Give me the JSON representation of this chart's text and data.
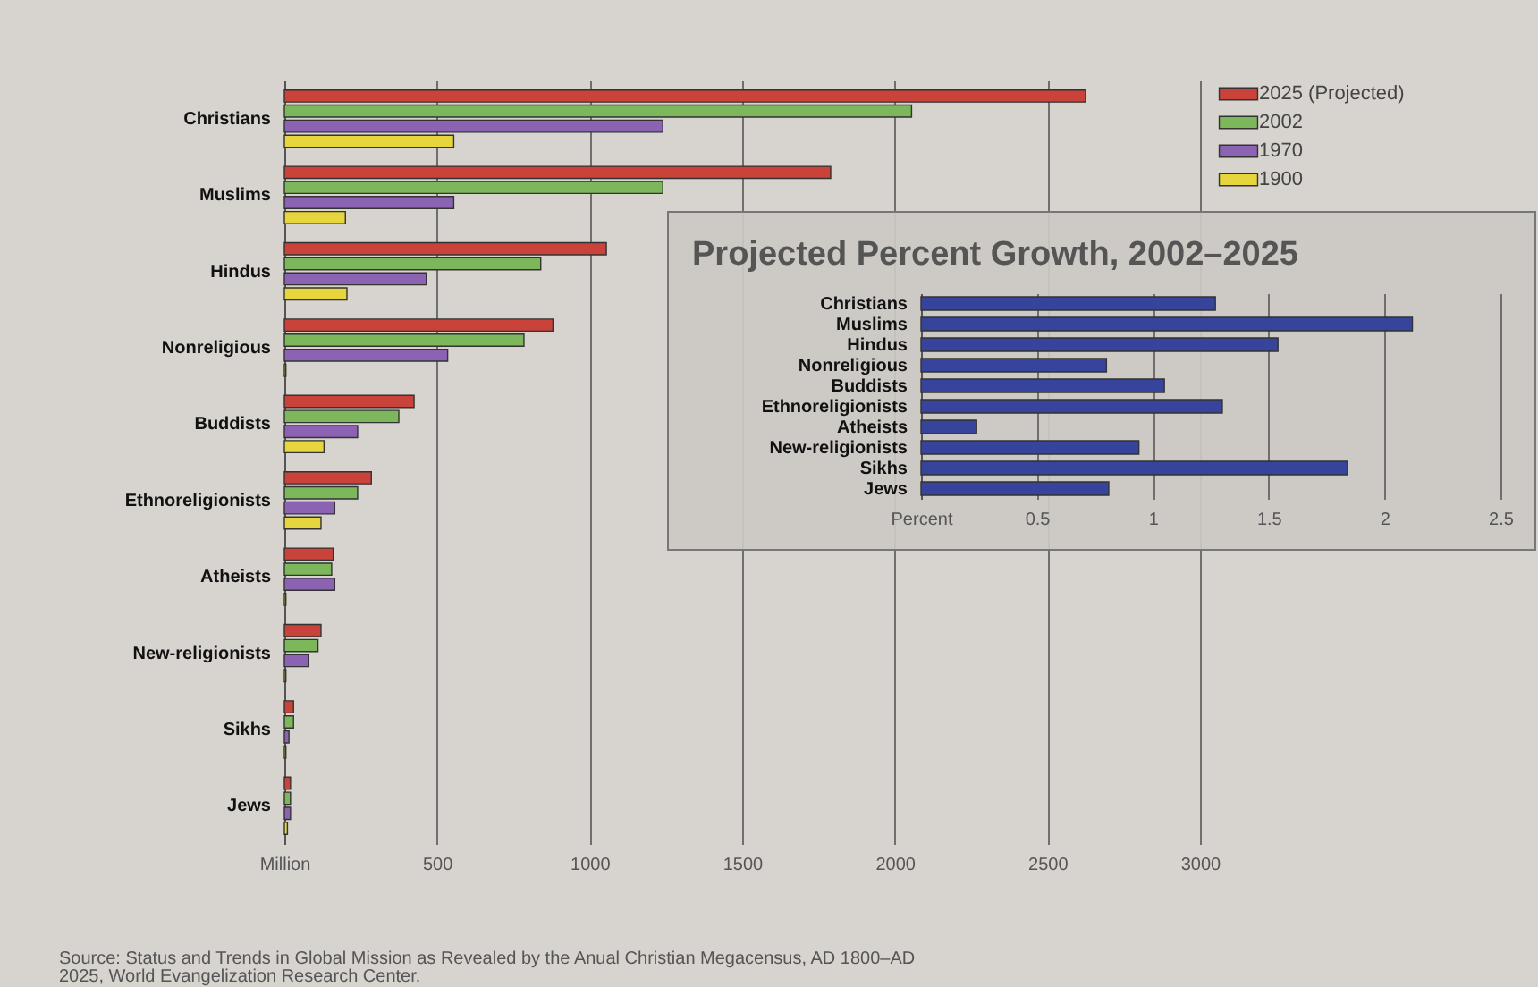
{
  "chart_data": [
    {
      "type": "bar",
      "orientation": "horizontal",
      "categories": [
        "Christians",
        "Muslims",
        "Hindus",
        "Nonreligious",
        "Buddists",
        "Ethnoreligionists",
        "Atheists",
        "New-religionists",
        "Sikhs",
        "Jews"
      ],
      "series": [
        {
          "name": "2025 (Projected)",
          "color": "#c9433b",
          "values": [
            2625,
            1790,
            1055,
            880,
            425,
            285,
            160,
            120,
            30,
            20
          ]
        },
        {
          "name": "2002",
          "color": "#7db75b",
          "values": [
            2055,
            1240,
            840,
            785,
            375,
            240,
            155,
            110,
            30,
            20
          ]
        },
        {
          "name": "1970",
          "color": "#8c63b3",
          "values": [
            1240,
            555,
            465,
            535,
            240,
            165,
            165,
            80,
            15,
            20
          ]
        },
        {
          "name": "1900",
          "color": "#e6d53d",
          "values": [
            555,
            200,
            205,
            5,
            130,
            120,
            5,
            5,
            5,
            10
          ]
        }
      ],
      "xlim": [
        0,
        3000
      ],
      "xticks": [
        {
          "value": 0,
          "label": "Million"
        },
        500,
        1000,
        1500,
        2000,
        2500,
        3000
      ],
      "grid": "x",
      "legend": "top right",
      "annotations": [
        "Source: Status and Trends in Global Mission as Revealed by the Anual Christian Megacensus, AD 1800–AD 2025, World Evangelization Research Center."
      ]
    },
    {
      "type": "bar",
      "orientation": "horizontal",
      "title": "Projected Percent Growth, 2002–2025",
      "categories": [
        "Christians",
        "Muslims",
        "Hindus",
        "Nonreligious",
        "Buddists",
        "Ethnoreligionists",
        "Atheists",
        "New-religionists",
        "Sikhs",
        "Jews"
      ],
      "values": [
        1.27,
        2.12,
        1.54,
        0.8,
        1.05,
        1.3,
        0.24,
        0.94,
        1.84,
        0.81
      ],
      "color": "#36459b",
      "xlim": [
        0,
        2.5
      ],
      "xticks": [
        {
          "value": 0,
          "label": "Percent"
        },
        0.5,
        1.0,
        1.5,
        2.0,
        2.5
      ],
      "grid": "x"
    }
  ]
}
